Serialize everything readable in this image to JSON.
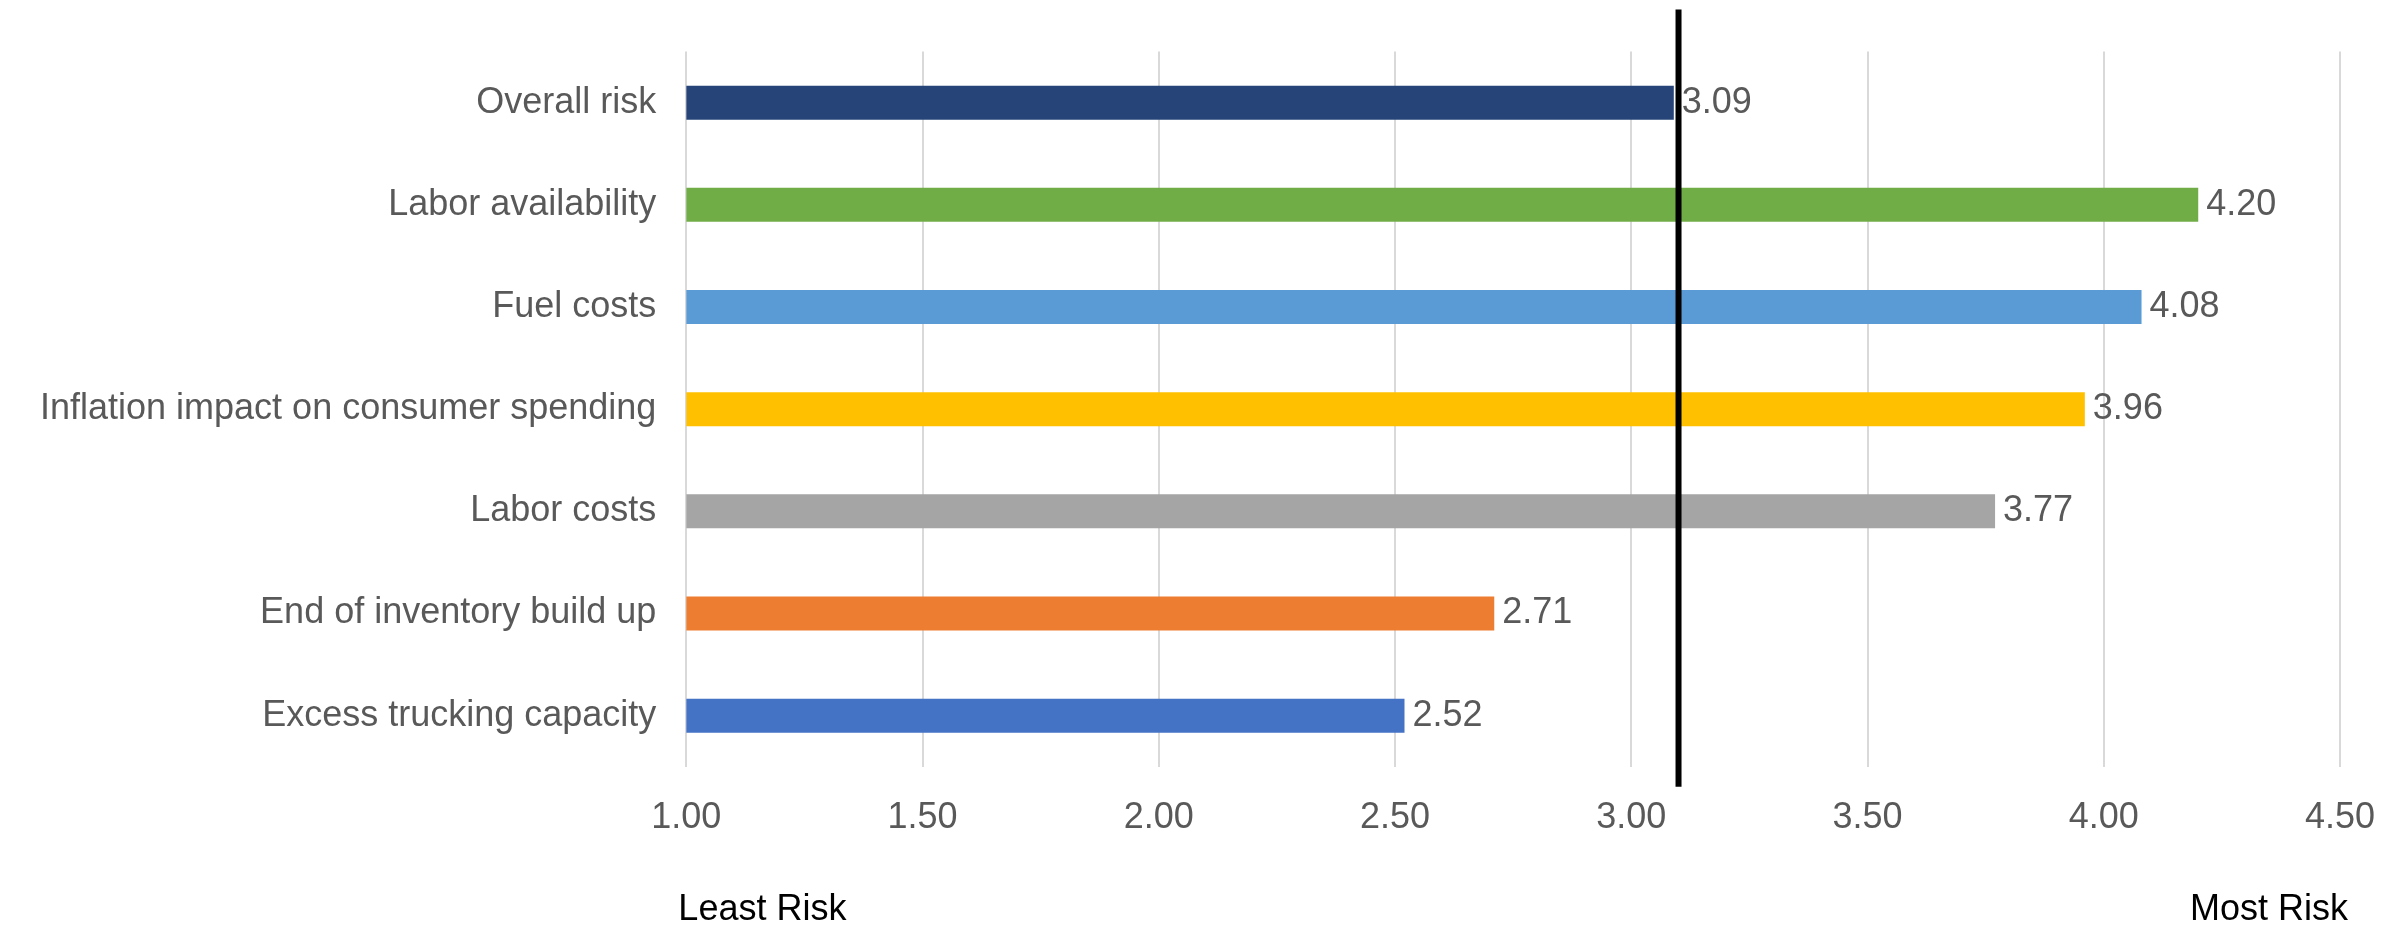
{
  "chart_data": {
    "type": "bar",
    "orientation": "horizontal",
    "categories": [
      "Overall risk",
      "Labor availability",
      "Fuel costs",
      "Inflation impact on consumer spending",
      "Labor costs",
      "End of inventory build up",
      "Excess trucking capacity"
    ],
    "values": [
      3.09,
      4.2,
      4.08,
      3.96,
      3.77,
      2.71,
      2.52
    ],
    "value_labels": [
      "3.09",
      "4.20",
      "4.08",
      "3.96",
      "3.77",
      "2.71",
      "2.52"
    ],
    "colors": [
      "#264478",
      "#70ad47",
      "#5b9bd5",
      "#ffc000",
      "#a5a5a5",
      "#ed7d31",
      "#4472c4"
    ],
    "xlim": [
      1,
      4.5
    ],
    "xticks": [
      {
        "value": 1,
        "label": "1.00"
      },
      {
        "value": 1.5,
        "label": "1.50"
      },
      {
        "value": 2,
        "label": "2.00"
      },
      {
        "value": 2.5,
        "label": "2.50"
      },
      {
        "value": 3,
        "label": "3.00"
      },
      {
        "value": 3.5,
        "label": "3.50"
      },
      {
        "value": 4,
        "label": "4.00"
      },
      {
        "value": 4.5,
        "label": "4.50"
      }
    ],
    "ref_lines": [
      {
        "axis": "x",
        "value": 3.1,
        "color": "#000000"
      }
    ],
    "annotations": [
      "Least Risk",
      "Most Risk"
    ],
    "grid": "x",
    "legend": false
  }
}
